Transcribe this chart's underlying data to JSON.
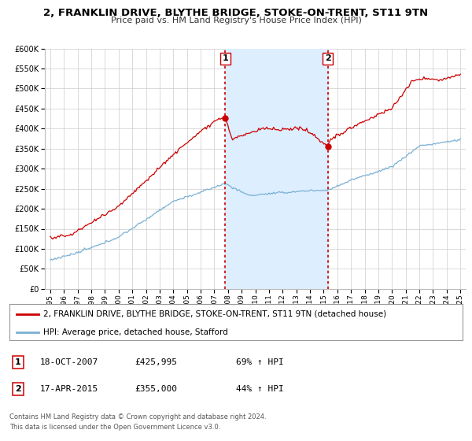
{
  "title": "2, FRANKLIN DRIVE, BLYTHE BRIDGE, STOKE-ON-TRENT, ST11 9TN",
  "subtitle": "Price paid vs. HM Land Registry's House Price Index (HPI)",
  "hpi_color": "#7ab0d4",
  "price_color": "#cc0000",
  "marker_color": "#cc0000",
  "shaded_color": "#ddeeff",
  "vline_color": "#cc0000",
  "ylim": [
    0,
    600000
  ],
  "yticks": [
    0,
    50000,
    100000,
    150000,
    200000,
    250000,
    300000,
    350000,
    400000,
    450000,
    500000,
    550000,
    600000
  ],
  "xlim_start": 1994.6,
  "xlim_end": 2025.4,
  "transaction1": {
    "label": "1",
    "date": "18-OCT-2007",
    "price": 425995,
    "hpi_pct": "69%",
    "x": 2007.8
  },
  "transaction2": {
    "label": "2",
    "date": "17-APR-2015",
    "price": 355000,
    "hpi_pct": "44%",
    "x": 2015.3
  },
  "legend_line1": "2, FRANKLIN DRIVE, BLYTHE BRIDGE, STOKE-ON-TRENT, ST11 9TN (detached house)",
  "legend_line2": "HPI: Average price, detached house, Stafford",
  "footer1": "Contains HM Land Registry data © Crown copyright and database right 2024.",
  "footer2": "This data is licensed under the Open Government Licence v3.0.",
  "background_color": "#ffffff",
  "grid_color": "#cccccc"
}
